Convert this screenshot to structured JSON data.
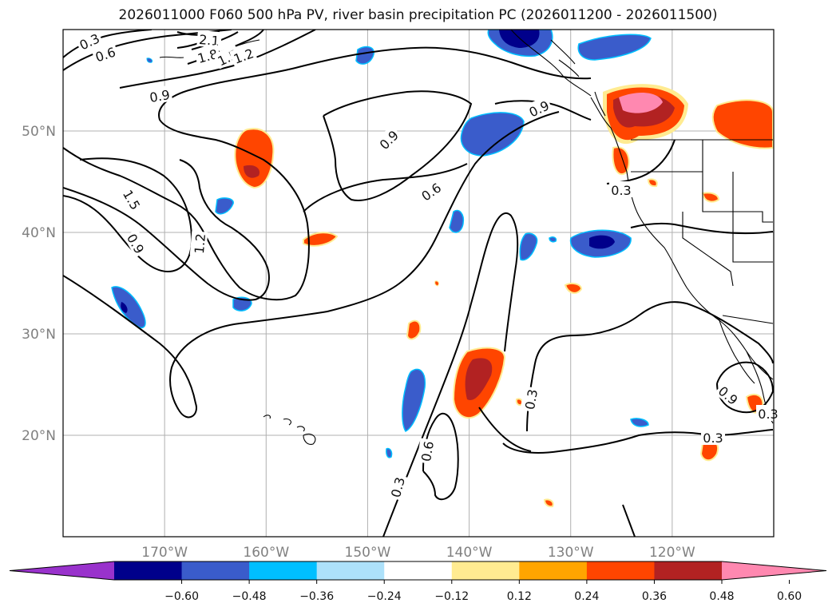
{
  "title": "2026011000 F060 500 hPa PV, river basin precipitation PC (2026011200 - 2026011500)",
  "colors": {
    "contour": "#000000",
    "grid": "#b0b0b0",
    "coast": "#000000"
  },
  "map": {
    "lon_ticks": [
      {
        "lon": -170,
        "label": "170°W"
      },
      {
        "lon": -160,
        "label": "160°W"
      },
      {
        "lon": -150,
        "label": "150°W"
      },
      {
        "lon": -140,
        "label": "140°W"
      },
      {
        "lon": -130,
        "label": "130°W"
      },
      {
        "lon": -120,
        "label": "120°W"
      }
    ],
    "lat_ticks": [
      {
        "lat": 50,
        "label": "50°N"
      },
      {
        "lat": 40,
        "label": "40°N"
      },
      {
        "lat": 30,
        "label": "30°N"
      },
      {
        "lat": 20,
        "label": "20°N"
      }
    ],
    "contour_labels": [
      "0.3",
      "0.6",
      "0.9",
      "1.2",
      "1.5",
      "1.8",
      "2.1"
    ]
  },
  "colorbar": {
    "colors": [
      "#9932CC",
      "#00008B",
      "#3A5CCB",
      "#00BFFF",
      "#ADE1FA",
      "#FFFFFF",
      "#FFEB91",
      "#FFA500",
      "#FF4500",
      "#B22222",
      "#FF88B0"
    ],
    "ticks": [
      "−0.60",
      "−0.48",
      "−0.36",
      "−0.24",
      "−0.12",
      "0.12",
      "0.24",
      "0.36",
      "0.48",
      "0.60"
    ]
  }
}
